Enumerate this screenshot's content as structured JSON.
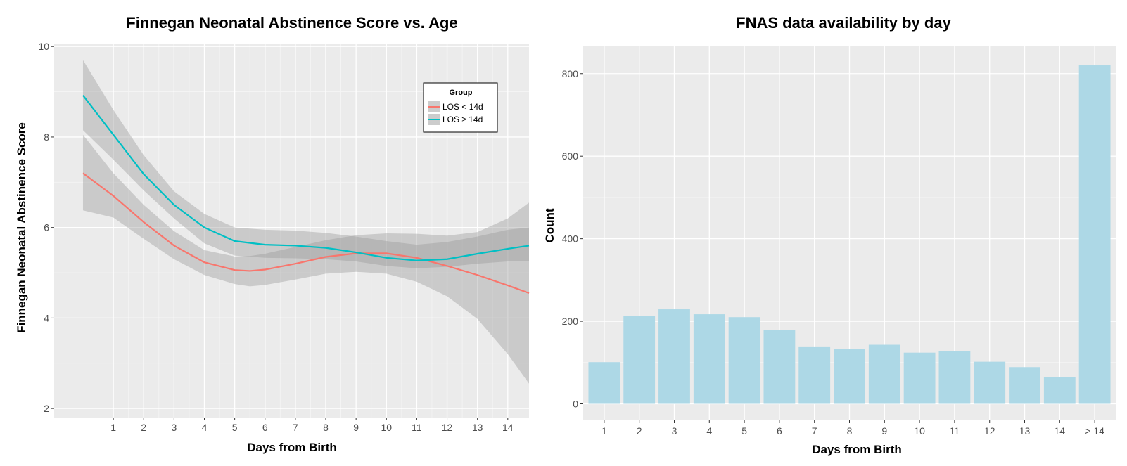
{
  "chart_data": [
    {
      "type": "line",
      "title": "Finnegan Neonatal Abstinence Score vs. Age",
      "xlabel": "Days from Birth",
      "ylabel": "Finnegan Neonatal Abstinence Score",
      "xlim": [
        -0.95,
        14.7
      ],
      "ylim": [
        1.8,
        10.05
      ],
      "x_ticks": [
        1,
        2,
        3,
        4,
        5,
        6,
        7,
        8,
        9,
        10,
        11,
        12,
        13,
        14
      ],
      "y_ticks": [
        2,
        4,
        6,
        8,
        10
      ],
      "grid": true,
      "legend": {
        "title": "Group",
        "position": "top-right",
        "entries": [
          "LOS < 14d",
          "LOS ≥ 14d"
        ]
      },
      "series": [
        {
          "name": "LOS < 14d",
          "color": "#F8766D",
          "x": [
            0,
            1,
            2,
            3,
            4,
            5,
            5.5,
            6,
            7,
            8,
            9,
            10,
            11,
            12,
            13,
            14,
            14.7
          ],
          "y": [
            7.2,
            6.7,
            6.12,
            5.6,
            5.23,
            5.06,
            5.04,
            5.07,
            5.2,
            5.35,
            5.43,
            5.43,
            5.33,
            5.15,
            4.95,
            4.72,
            4.55
          ],
          "lower": [
            6.38,
            6.22,
            5.75,
            5.3,
            4.95,
            4.75,
            4.7,
            4.73,
            4.85,
            4.98,
            5.02,
            4.98,
            4.8,
            4.48,
            3.98,
            3.2,
            2.55
          ],
          "upper": [
            8.05,
            7.2,
            6.5,
            5.92,
            5.5,
            5.36,
            5.37,
            5.42,
            5.57,
            5.72,
            5.83,
            5.87,
            5.86,
            5.82,
            5.9,
            6.2,
            6.55
          ]
        },
        {
          "name": "LOS ≥ 14d",
          "color": "#00BFC4",
          "x": [
            0,
            1,
            2,
            3,
            4,
            5,
            6,
            7,
            8,
            9,
            10,
            11,
            12,
            13,
            14,
            14.7
          ],
          "y": [
            8.92,
            8.05,
            7.18,
            6.5,
            6.0,
            5.7,
            5.62,
            5.6,
            5.55,
            5.45,
            5.33,
            5.27,
            5.3,
            5.42,
            5.53,
            5.6
          ],
          "lower": [
            8.15,
            7.5,
            6.82,
            6.2,
            5.65,
            5.38,
            5.33,
            5.32,
            5.3,
            5.25,
            5.15,
            5.1,
            5.13,
            5.2,
            5.25,
            5.25
          ],
          "upper": [
            9.7,
            8.6,
            7.6,
            6.8,
            6.3,
            6.0,
            5.95,
            5.93,
            5.88,
            5.8,
            5.7,
            5.62,
            5.68,
            5.8,
            5.95,
            6.0
          ]
        }
      ]
    },
    {
      "type": "bar",
      "title": "FNAS data availability by day",
      "xlabel": "Days from Birth",
      "ylabel": "Count",
      "categories": [
        "1",
        "2",
        "3",
        "4",
        "5",
        "6",
        "7",
        "8",
        "9",
        "10",
        "11",
        "12",
        "13",
        "14",
        "> 14"
      ],
      "values": [
        101,
        213,
        229,
        217,
        210,
        178,
        139,
        133,
        143,
        124,
        127,
        102,
        89,
        64,
        820
      ],
      "ylim": [
        -40,
        866
      ],
      "y_ticks": [
        0,
        200,
        400,
        600,
        800
      ],
      "bar_color": "#ADD8E6",
      "grid": true
    }
  ]
}
